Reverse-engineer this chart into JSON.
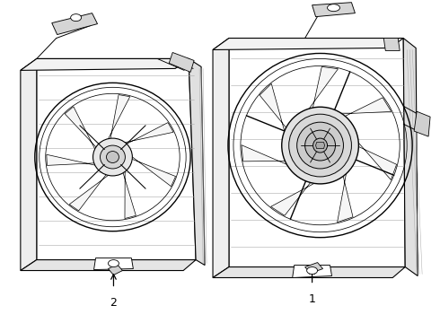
{
  "bg": "#ffffff",
  "lc": "#000000",
  "lw": 0.8,
  "label1": "1",
  "label2": "2",
  "fw": 4.9,
  "fh": 3.6,
  "dpi": 100
}
